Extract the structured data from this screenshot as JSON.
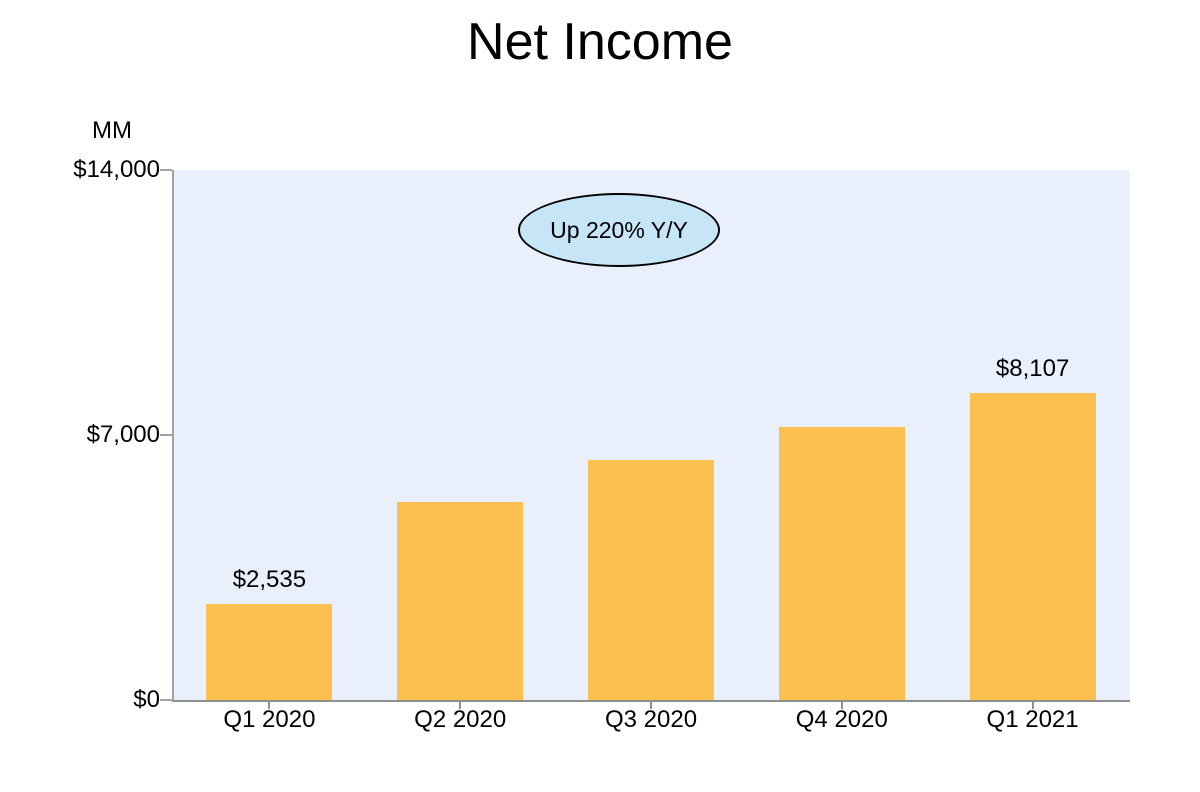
{
  "title": "Net Income",
  "colors": {
    "bar": "#FBC04F",
    "plot_background": "#E9F0FB",
    "callout_fill": "#C6E6F8",
    "callout_border": "#000000",
    "axis_line": "#A2A2A2",
    "text": "#000000"
  },
  "annotation": {
    "text": "Up 220% Y/Y"
  },
  "chart_data": {
    "type": "bar",
    "title": "Net Income",
    "ylabel": "MM",
    "xlabel": "",
    "categories": [
      "Q1 2020",
      "Q2 2020",
      "Q3 2020",
      "Q4 2020",
      "Q1 2021"
    ],
    "values": [
      2535,
      5243,
      6331,
      7222,
      8107
    ],
    "data_labels": [
      "$2,535",
      null,
      null,
      null,
      "$8,107"
    ],
    "ylim": [
      0,
      14000
    ],
    "yticks": [
      {
        "value": 0,
        "label": "$0"
      },
      {
        "value": 7000,
        "label": "$7,000"
      },
      {
        "value": 14000,
        "label": "$14,000"
      }
    ],
    "grid": false,
    "legend": "none",
    "annotations": [
      "Up 220% Y/Y"
    ]
  }
}
